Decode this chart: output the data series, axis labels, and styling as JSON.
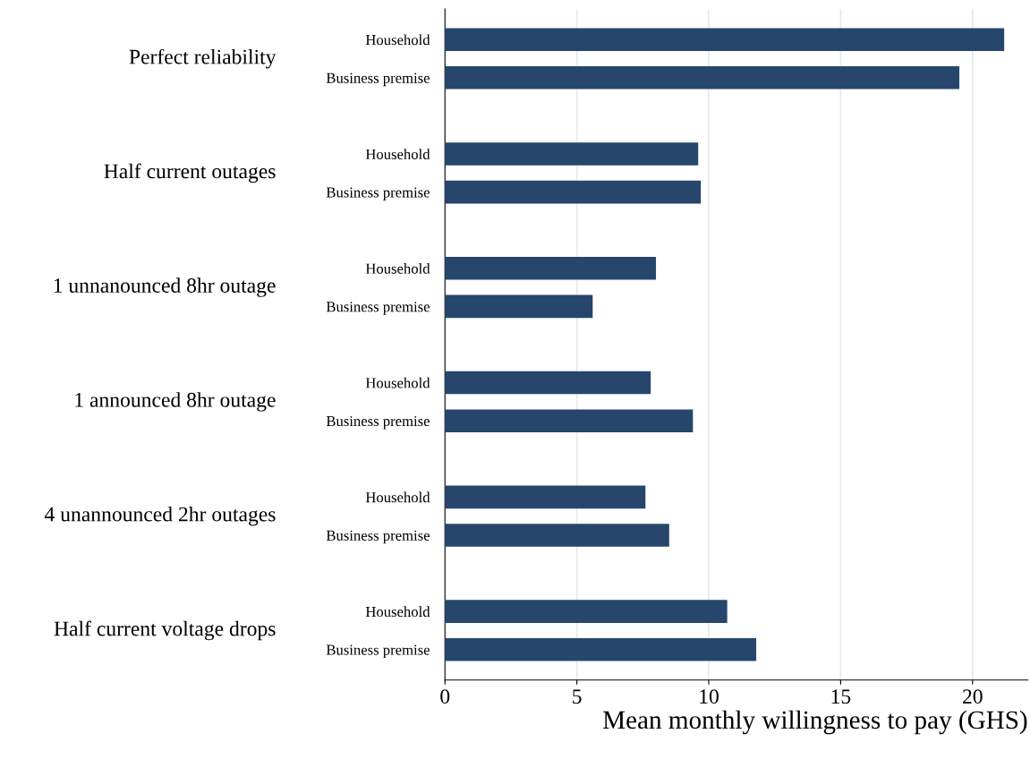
{
  "chart_data": {
    "type": "bar",
    "orientation": "horizontal",
    "xlabel": "Mean monthly willingness to pay (GHS)",
    "categories": [
      "Household",
      "Business premise",
      "Household",
      "Business premise",
      "Household",
      "Business premise",
      "Household",
      "Business premise",
      "Household",
      "Business premise",
      "Household",
      "Business premise"
    ],
    "values": [
      21.2,
      19.5,
      9.6,
      9.7,
      8.0,
      5.6,
      7.8,
      9.4,
      7.6,
      8.5,
      10.7,
      11.8
    ],
    "color": "#26476b",
    "annotations": [
      "Perfect reliability",
      "Half current outages",
      "1 unnanounced 8hr outage",
      "1 announced 8hr outage",
      "4 unannounced 2hr outages",
      "Half current voltage drops"
    ],
    "xlim": [
      0,
      22.1
    ],
    "xticks": [
      0,
      5,
      10,
      15,
      20
    ],
    "grid": "x"
  }
}
